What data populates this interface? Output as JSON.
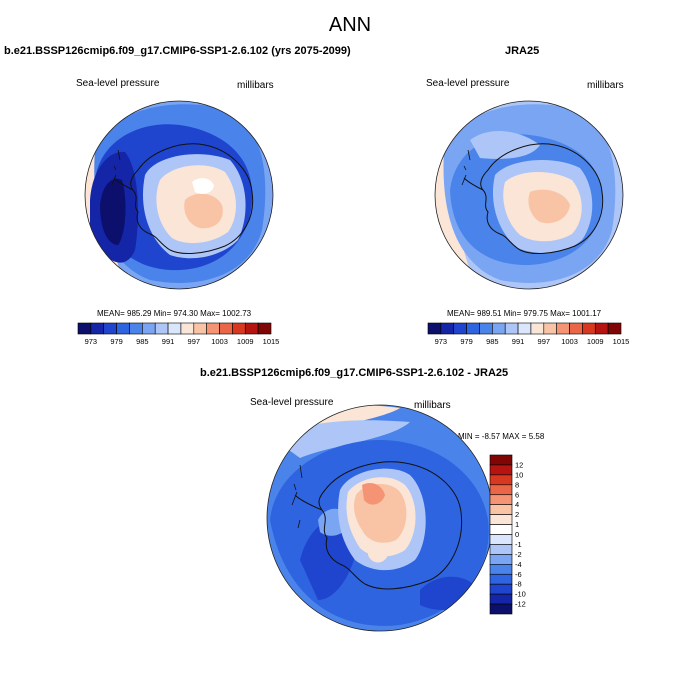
{
  "title": "ANN",
  "panels": [
    {
      "title": "b.e21.BSSP126cmip6.f09_g17.CMIP6-SSP1-2.6.102 (yrs 2075-2099)",
      "left_label": "Sea-level pressure",
      "right_label": "millibars",
      "stats": "MEAN= 985.29   Min= 974.30   Max= 1002.73"
    },
    {
      "title": "JRA25",
      "left_label": "Sea-level pressure",
      "right_label": "millibars",
      "stats": "MEAN= 989.51   Min= 979.75   Max= 1001.17"
    },
    {
      "title": "b.e21.BSSP126cmip6.f09_g17.CMIP6-SSP1-2.6.102 - JRA25",
      "left_label": "Sea-level pressure",
      "right_label": "millibars",
      "stats": "MIN =  -8.57 MAX =   5.58"
    }
  ],
  "chart_data": [
    {
      "type": "heatmap",
      "title": "b.e21.BSSP126cmip6.f09_g17.CMIP6-SSP1-2.6.102 (yrs 2075-2099)",
      "variable": "Sea-level pressure",
      "units": "millibars",
      "projection": "polar stereographic, south pole",
      "mean": 985.29,
      "min": 974.3,
      "max": 1002.73,
      "colorbar": {
        "orientation": "horizontal",
        "levels": [
          "973",
          "979",
          "985",
          "991",
          "997",
          "1003",
          "1009",
          "1015"
        ],
        "colors": [
          "#0c0f6c",
          "#1525a8",
          "#1f45cf",
          "#2e64e0",
          "#4a84eb",
          "#7aa5f2",
          "#adc6f7",
          "#d9e6fb",
          "#fbe5d6",
          "#f9c3a6",
          "#f49474",
          "#ea6646",
          "#d8381f",
          "#b51411",
          "#800605"
        ]
      }
    },
    {
      "type": "heatmap",
      "title": "JRA25",
      "variable": "Sea-level pressure",
      "units": "millibars",
      "projection": "polar stereographic, south pole",
      "mean": 989.51,
      "min": 979.75,
      "max": 1001.17,
      "colorbar": {
        "orientation": "horizontal",
        "levels": [
          "973",
          "979",
          "985",
          "991",
          "997",
          "1003",
          "1009",
          "1015"
        ],
        "colors": [
          "#0c0f6c",
          "#1525a8",
          "#1f45cf",
          "#2e64e0",
          "#4a84eb",
          "#7aa5f2",
          "#adc6f7",
          "#d9e6fb",
          "#fbe5d6",
          "#f9c3a6",
          "#f49474",
          "#ea6646",
          "#d8381f",
          "#b51411",
          "#800605"
        ]
      }
    },
    {
      "type": "heatmap",
      "title": "b.e21.BSSP126cmip6.f09_g17.CMIP6-SSP1-2.6.102 - JRA25",
      "variable": "Sea-level pressure",
      "units": "millibars",
      "projection": "polar stereographic, south pole",
      "min": -8.57,
      "max": 5.58,
      "colorbar": {
        "orientation": "vertical",
        "levels": [
          "12",
          "10",
          "8",
          "6",
          "4",
          "2",
          "1",
          "0",
          "-1",
          "-2",
          "-4",
          "-6",
          "-8",
          "-10",
          "-12"
        ],
        "colors": [
          "#800605",
          "#b51411",
          "#d8381f",
          "#ea6646",
          "#f49474",
          "#f9c3a6",
          "#fbe5d6",
          "#ffffff",
          "#d9e6fb",
          "#adc6f7",
          "#7aa5f2",
          "#4a84eb",
          "#2e64e0",
          "#1f45cf",
          "#1525a8",
          "#0c0f6c"
        ]
      }
    }
  ]
}
